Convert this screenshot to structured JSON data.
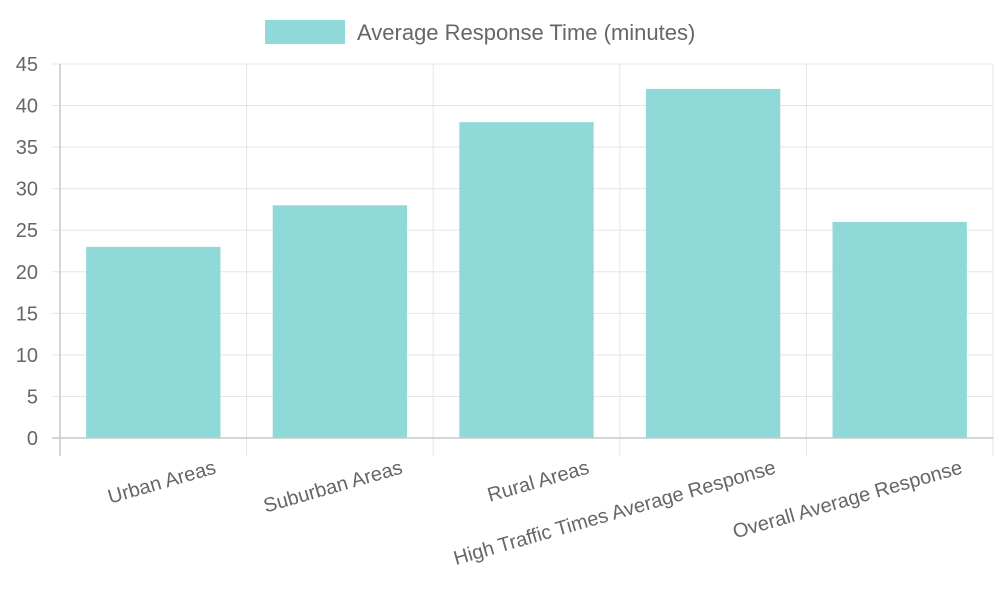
{
  "chart_data": {
    "type": "bar",
    "categories": [
      "Urban Areas",
      "Suburban Areas",
      "Rural Areas",
      "High Traffic Times Average Response",
      "Overall Average Response"
    ],
    "series": [
      {
        "name": "Average Response Time (minutes)",
        "values": [
          23,
          28,
          38,
          42,
          26
        ],
        "color": "#8fd9d9"
      }
    ],
    "ylim": [
      0,
      45
    ],
    "yticks": [
      0,
      5,
      10,
      15,
      20,
      25,
      30,
      35,
      40,
      45
    ],
    "grid": true,
    "legend_position": "top",
    "title": "",
    "xlabel": "",
    "ylabel": ""
  }
}
